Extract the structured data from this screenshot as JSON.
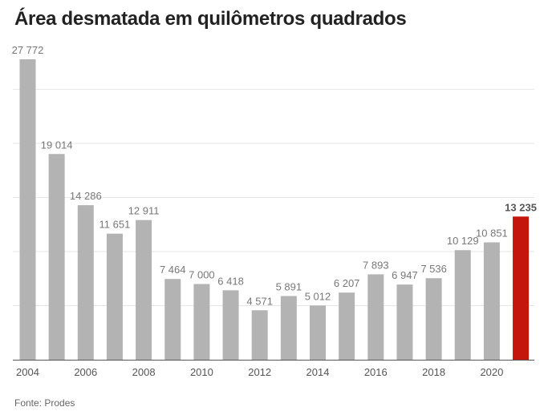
{
  "title": "Área desmatada em quilômetros quadrados",
  "source": "Fonte: Prodes",
  "colors": {
    "bar": "#b3b3b3",
    "highlight": "#c4160d",
    "grid": "#e6e6e6",
    "axis": "#555555",
    "label": "#777777",
    "highlight_label": "#555555",
    "tick": "#555555"
  },
  "chart_data": {
    "type": "bar",
    "title": "Área desmatada em quilômetros quadrados",
    "xlabel": "",
    "ylabel": "",
    "ylim": [
      0,
      30000
    ],
    "grid": true,
    "gridlines": [
      5000,
      10000,
      15000,
      20000,
      25000
    ],
    "categories": [
      "2004",
      "2005",
      "2006",
      "2007",
      "2008",
      "2009",
      "2010",
      "2011",
      "2012",
      "2013",
      "2014",
      "2015",
      "2016",
      "2017",
      "2018",
      "2019",
      "2020",
      "2021"
    ],
    "values": [
      27772,
      19014,
      14286,
      11651,
      12911,
      7464,
      7000,
      6418,
      4571,
      5891,
      5012,
      6207,
      7893,
      6947,
      7536,
      10129,
      10851,
      13235
    ],
    "value_labels": [
      "27 772",
      "19 014",
      "14 286",
      "11 651",
      "12 911",
      "7 464",
      "7 000",
      "6 418",
      "4 571",
      "5 891",
      "5 012",
      "6 207",
      "7 893",
      "6 947",
      "7 536",
      "10 129",
      "10 851",
      "13 235"
    ],
    "x_tick_labels": [
      "2004",
      "2006",
      "2008",
      "2010",
      "2012",
      "2014",
      "2016",
      "2018",
      "2020"
    ],
    "highlight_index": 17
  }
}
